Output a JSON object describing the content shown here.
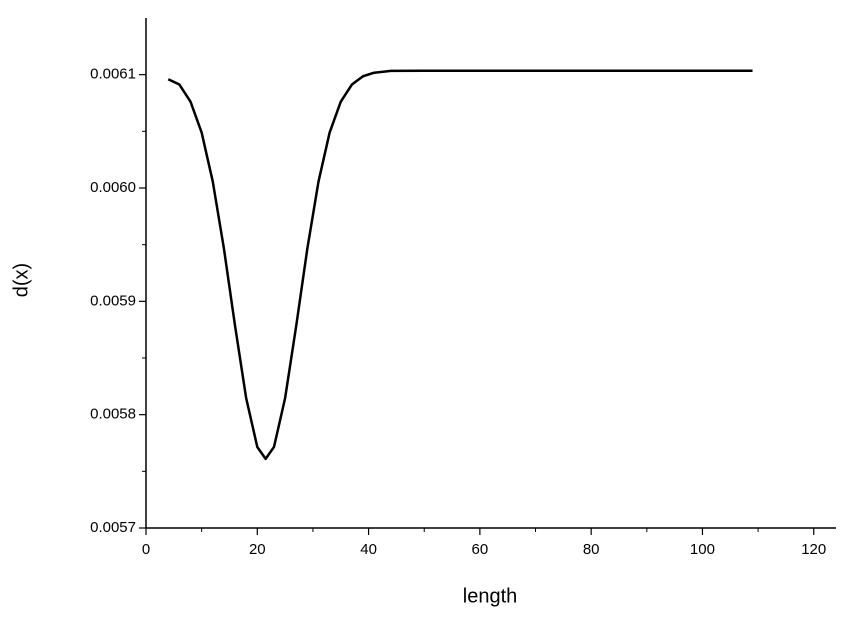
{
  "chart_data": {
    "type": "line",
    "x_label": "length",
    "y_label": "d(x)",
    "x": [
      4,
      6,
      8,
      10,
      12,
      14,
      16,
      18,
      20,
      21.5,
      23,
      25,
      27,
      29,
      31,
      33,
      35,
      37,
      39,
      41,
      44,
      50,
      70,
      90,
      109
    ],
    "values": [
      0.006096,
      0.0060913,
      0.0060762,
      0.0060489,
      0.0060057,
      0.0059467,
      0.0058785,
      0.0058146,
      0.0057715,
      0.005761,
      0.0057715,
      0.0058146,
      0.0058785,
      0.0059467,
      0.0060057,
      0.0060489,
      0.0060762,
      0.0060913,
      0.0060986,
      0.0061017,
      0.0061033,
      0.0061035,
      0.0061035,
      0.0061035,
      0.0061035
    ],
    "color": "#000000",
    "xlim": [
      0,
      124
    ],
    "xticks": [
      0,
      20,
      40,
      60,
      80,
      100,
      120
    ],
    "ylim": [
      0.0057,
      0.00615
    ],
    "yticks": [
      0.0057,
      0.0058,
      0.0059,
      {
        "value": 0.006,
        "label": "0.0060"
      },
      0.0061
    ],
    "grid": false
  }
}
